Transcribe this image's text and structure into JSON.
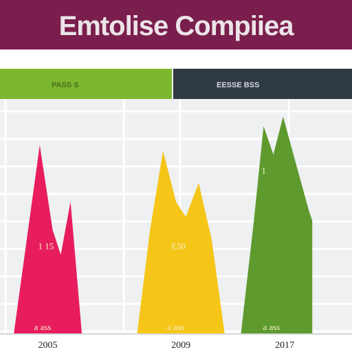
{
  "title": "Emtolise Compiiea",
  "colors": {
    "title_bg": "#7a1f4d",
    "header_green": "#7cb82f",
    "header_dark": "#2f3a44",
    "grid_bg": "#eef0f2",
    "grid_line": "#ffffff",
    "pink": "#e81d5e",
    "yellow": "#f5c518",
    "green": "#5e9a2e"
  },
  "header": {
    "left_label": "PASS S",
    "right_label": "EESSE BSS"
  },
  "chart_data": {
    "type": "area",
    "title": "Emtolise Compiiea",
    "xlabel": "",
    "ylabel": "",
    "x_ticks": [
      "2005",
      "2009",
      "2017"
    ],
    "ylim": [
      0,
      100
    ],
    "grid": true,
    "series": [
      {
        "color": "#e81d5e",
        "peak_label": "1 15",
        "base_label": "a ass",
        "points": [
          [
            0,
            0
          ],
          [
            0.4,
            50
          ],
          [
            0.8,
            100
          ],
          [
            1.2,
            55
          ],
          [
            1.45,
            42
          ],
          [
            1.75,
            70
          ],
          [
            2.1,
            0
          ]
        ]
      },
      {
        "color": "#f5c518",
        "peak_label": "E50",
        "base_label": "a ass",
        "points": [
          [
            3.8,
            0
          ],
          [
            4.2,
            55
          ],
          [
            4.6,
            97
          ],
          [
            5.0,
            70
          ],
          [
            5.3,
            62
          ],
          [
            5.7,
            80
          ],
          [
            6.1,
            50
          ],
          [
            6.5,
            0
          ]
        ]
      },
      {
        "color": "#5e9a2e",
        "peak_label": "1",
        "base_label": "a ass",
        "points": [
          [
            7.0,
            0
          ],
          [
            7.4,
            60
          ],
          [
            7.7,
            110
          ],
          [
            8.0,
            95
          ],
          [
            8.3,
            115
          ],
          [
            8.7,
            90
          ],
          [
            9.1,
            65
          ],
          [
            9.2,
            60
          ],
          [
            9.2,
            0
          ]
        ]
      }
    ]
  }
}
